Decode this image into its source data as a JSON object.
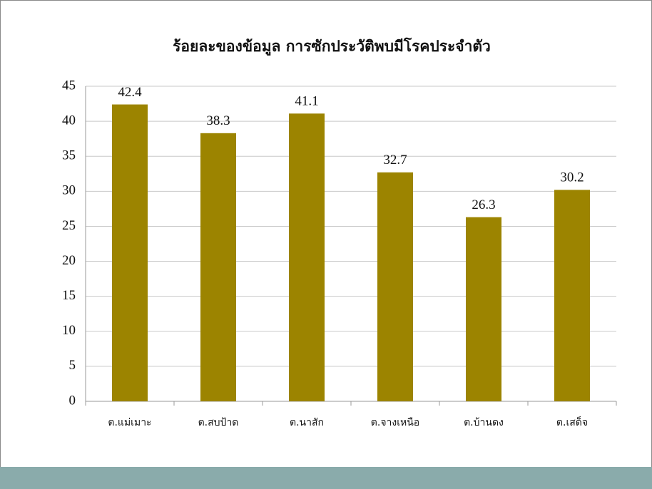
{
  "chart_data": {
    "type": "bar",
    "title": "ร้อยละของข้อมูล การซักประวัติพบมีโรคประจำตัว",
    "categories": [
      "ต.แม่เมาะ",
      "ต.สบป้าด",
      "ต.นาสัก",
      "ต.จางเหนือ",
      "ต.บ้านดง",
      "ต.เสด็จ"
    ],
    "values": [
      42.4,
      38.3,
      41.1,
      32.7,
      26.3,
      30.2
    ],
    "color": "#9c8400",
    "ylim": [
      0,
      45
    ],
    "yticks": [
      0,
      5,
      10,
      15,
      20,
      25,
      30,
      35,
      40,
      45
    ],
    "grid": true
  }
}
